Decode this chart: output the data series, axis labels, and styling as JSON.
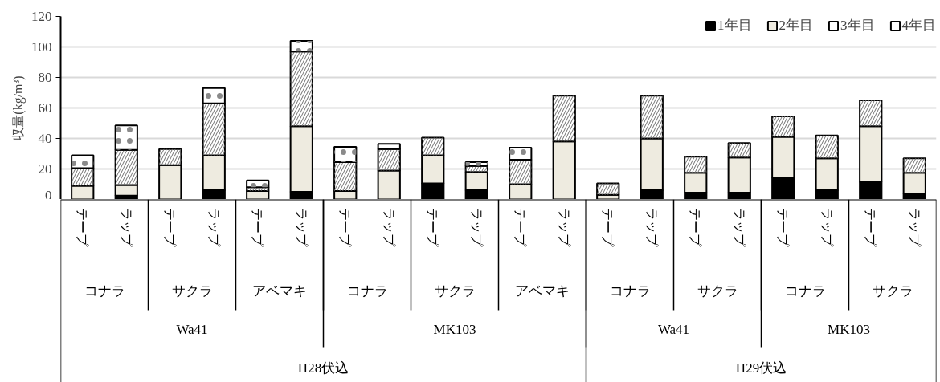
{
  "chart_data": {
    "type": "bar",
    "stacked": true,
    "ylabel": "収量(kg/m³)",
    "categories": [
      "テープ",
      "ラップ",
      "テープ",
      "ラップ",
      "テープ",
      "ラップ",
      "テープ",
      "ラップ",
      "テープ",
      "ラップ",
      "テープ",
      "ラップ",
      "テープ",
      "ラップ",
      "テープ",
      "ラップ",
      "テープ",
      "ラップ",
      "テープ",
      "ラップ"
    ],
    "series": [
      {
        "name": "1年目",
        "color": "#000000",
        "values": [
          null,
          2.5,
          null,
          6,
          null,
          5,
          null,
          null,
          10.5,
          6,
          null,
          null,
          null,
          6,
          4.5,
          4.5,
          14.5,
          6,
          11.5,
          3.5
        ]
      },
      {
        "name": "2年目",
        "color": "#eeebe0",
        "values": [
          9,
          7,
          22.5,
          23,
          5.5,
          43,
          5.5,
          19,
          18.5,
          12,
          10,
          38,
          3,
          34,
          13,
          23,
          26.5,
          21,
          36.5,
          14
        ]
      },
      {
        "name": "3年目",
        "color": "#ffffff",
        "values": [
          11.5,
          23,
          10.5,
          34,
          2.5,
          49,
          19,
          14,
          11.5,
          4,
          16,
          30,
          7.5,
          28,
          10.5,
          9.5,
          13.5,
          15,
          17,
          9.5
        ]
      },
      {
        "name": "4年目",
        "color": "#ffffff",
        "values": [
          8.5,
          16,
          null,
          10,
          4.5,
          7,
          10,
          3.5,
          null,
          2.5,
          8,
          null,
          null,
          null,
          null,
          null,
          null,
          null,
          null,
          null
        ]
      }
    ],
    "annotations": [
      "コナラ",
      "サクラ",
      "アベマキ",
      "コナラ",
      "サクラ",
      "アベマキ",
      "コナラ",
      "サクラ",
      "コナラ",
      "サクラ",
      "Wa41",
      "MK103",
      "Wa41",
      "MK103",
      "H28伏込",
      "H29伏込"
    ],
    "ylim": [
      0,
      120
    ],
    "yticks": [
      0,
      20,
      40,
      60,
      80,
      100,
      120
    ],
    "grid": "y",
    "legend": "top right"
  }
}
